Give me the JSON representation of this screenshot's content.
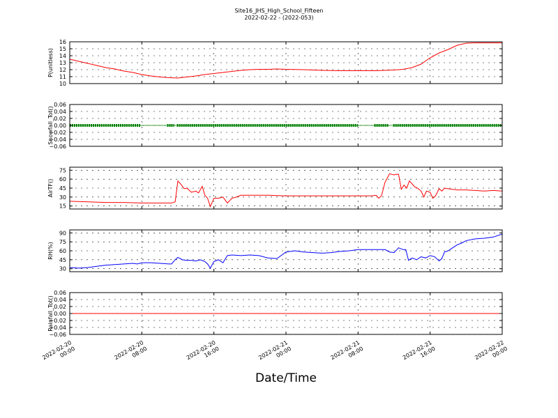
{
  "header": {
    "title": "Site16_JHS_High_School_Fifteen",
    "subtitle": "2022-02-22 - (2022-053)"
  },
  "xlabel": "Date/Time",
  "colors": {
    "red": "#ff0000",
    "green": "#008000",
    "blue": "#0000ff",
    "axis": "#000000"
  },
  "x_ticks": [
    {
      "t": 0,
      "line1": "2022-02-20",
      "line2": "00:00"
    },
    {
      "t": 8,
      "line1": "2022-02-20",
      "line2": "08:00"
    },
    {
      "t": 16,
      "line1": "2022-02-20",
      "line2": "16:00"
    },
    {
      "t": 24,
      "line1": "2022-02-21",
      "line2": "00:00"
    },
    {
      "t": 32,
      "line1": "2022-02-21",
      "line2": "08:00"
    },
    {
      "t": 40,
      "line1": "2022-02-21",
      "line2": "16:00"
    },
    {
      "t": 48,
      "line1": "2022-02-22",
      "line2": "00:00"
    }
  ],
  "chart_data": [
    {
      "type": "line",
      "ylabel": "P(unitless)",
      "ylim": [
        10,
        16
      ],
      "yticks": [
        "10",
        "11",
        "12",
        "13",
        "14",
        "15",
        "16"
      ],
      "grid": true,
      "series": [
        {
          "color": "#ff0000",
          "x": [
            0,
            1,
            2,
            3,
            4,
            5,
            6,
            7,
            8,
            9,
            10,
            11,
            12,
            13,
            14,
            15,
            16,
            17,
            18,
            19,
            20,
            21,
            22,
            23,
            24,
            26,
            28,
            30,
            32,
            34,
            36,
            37,
            38,
            39,
            40,
            41,
            42,
            43,
            44,
            45,
            46,
            47,
            48
          ],
          "values": [
            13.5,
            13.2,
            12.9,
            12.6,
            12.3,
            12.1,
            11.8,
            11.6,
            11.3,
            11.1,
            10.95,
            10.85,
            10.8,
            10.95,
            11.1,
            11.3,
            11.45,
            11.6,
            11.75,
            11.9,
            12.0,
            12.05,
            12.05,
            12.1,
            12.05,
            12.0,
            11.9,
            11.85,
            11.85,
            11.85,
            11.95,
            12.05,
            12.3,
            12.8,
            13.7,
            14.4,
            14.9,
            15.5,
            15.8,
            15.85,
            15.85,
            15.85,
            15.85
          ]
        }
      ]
    },
    {
      "type": "scatter",
      "ylabel": "Snowfall_Tot()",
      "ylim": [
        -0.06,
        0.06
      ],
      "yticks": [
        "0.06",
        "0.04",
        "0.02",
        "0.00",
        "−0.02",
        "−0.04",
        "−0.06"
      ],
      "grid": true,
      "series": [
        {
          "color": "#008000",
          "segments": [
            [
              0,
              7.9
            ],
            [
              10.8,
              11.6
            ],
            [
              11.9,
              32.0
            ],
            [
              33.8,
              35.4
            ],
            [
              35.9,
              48
            ]
          ],
          "value": 0.0
        }
      ]
    },
    {
      "type": "line",
      "ylabel": "AirTF()",
      "ylim": [
        10,
        80
      ],
      "yticks": [
        "15",
        "30",
        "45",
        "60",
        "75"
      ],
      "grid": true,
      "series": [
        {
          "color": "#ff0000",
          "x": [
            0,
            2,
            4,
            6,
            8,
            10,
            11,
            11.3,
            11.7,
            12,
            12.3,
            12.7,
            13,
            13.5,
            14,
            14.3,
            14.7,
            15,
            15.3,
            15.6,
            16,
            16.5,
            17,
            17.5,
            18,
            18.5,
            19,
            20,
            22,
            24,
            26,
            28,
            30,
            32,
            33,
            33.5,
            34,
            34.3,
            34.6,
            35,
            35.5,
            36,
            36.2,
            36.5,
            36.8,
            37.1,
            37.4,
            37.7,
            38,
            38.3,
            38.6,
            39,
            39.3,
            39.6,
            40,
            40.3,
            40.6,
            41,
            41.3,
            41.6,
            42,
            43,
            44,
            45,
            46,
            47,
            48
          ],
          "values": [
            23,
            22,
            21,
            21,
            20,
            20,
            20,
            20,
            22,
            57,
            52,
            44,
            45,
            38,
            40,
            37,
            48,
            33,
            28,
            14,
            28,
            28,
            30,
            20,
            28,
            30,
            33,
            33,
            33,
            32,
            32,
            32,
            32,
            32,
            32,
            32,
            33,
            28,
            32,
            55,
            69,
            67,
            68,
            68,
            43,
            50,
            45,
            57,
            52,
            47,
            45,
            40,
            30,
            40,
            38,
            28,
            32,
            44,
            40,
            45,
            44,
            42,
            42,
            41,
            40,
            41,
            40
          ]
        }
      ]
    },
    {
      "type": "line",
      "ylabel": "RH(%)",
      "ylim": [
        25,
        95
      ],
      "yticks": [
        "30",
        "45",
        "60",
        "75",
        "90"
      ],
      "grid": true,
      "series": [
        {
          "color": "#0000ff",
          "x": [
            0,
            1,
            2,
            3,
            4,
            5,
            6,
            7,
            7.5,
            8,
            9,
            10,
            11,
            11.3,
            11.7,
            12,
            12.5,
            13,
            13.5,
            14,
            14.5,
            15,
            15.3,
            15.6,
            16,
            16.5,
            17,
            17.5,
            18,
            19,
            20,
            21,
            22,
            23,
            24,
            25,
            26,
            27,
            28,
            29,
            30,
            31,
            32,
            33,
            34,
            35,
            35.5,
            36,
            36.5,
            37,
            37.3,
            37.6,
            38,
            38.5,
            39,
            39.5,
            40,
            40.5,
            41,
            41.3,
            41.6,
            42,
            42.5,
            43,
            43.5,
            44,
            45,
            46,
            47,
            48
          ],
          "values": [
            32,
            31,
            32,
            34,
            36,
            37,
            38,
            39,
            38,
            40,
            40,
            39,
            38,
            38,
            45,
            49,
            45,
            44,
            44,
            43,
            45,
            42,
            38,
            31,
            42,
            45,
            40,
            52,
            53,
            52,
            53,
            52,
            48,
            47,
            58,
            60,
            58,
            57,
            56,
            57,
            59,
            60,
            62,
            62,
            62,
            62,
            58,
            57,
            65,
            62,
            62,
            44,
            48,
            45,
            50,
            48,
            52,
            50,
            43,
            47,
            58,
            60,
            65,
            70,
            73,
            77,
            80,
            81,
            83,
            88
          ]
        }
      ]
    },
    {
      "type": "line",
      "ylabel": "Rainfall_Tot()",
      "ylim": [
        -0.06,
        0.06
      ],
      "yticks": [
        "0.06",
        "0.04",
        "0.02",
        "0.00",
        "−0.02",
        "−0.04",
        "−0.06"
      ],
      "grid": true,
      "series": [
        {
          "color": "#ff0000",
          "x": [
            0,
            48
          ],
          "values": [
            0.0,
            0.0
          ]
        }
      ]
    }
  ]
}
